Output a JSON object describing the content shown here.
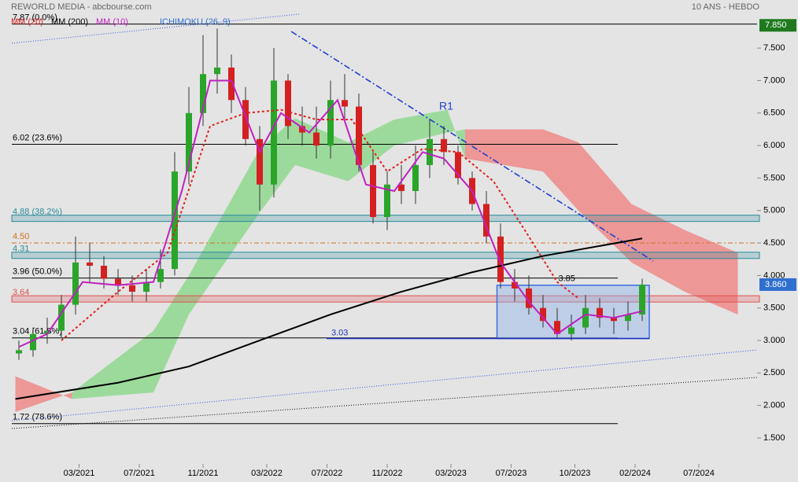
{
  "header": {
    "title": "REWORLD MEDIA - abcbourse.com",
    "period": "10 ANS - HEBDO"
  },
  "chart_data": {
    "type": "candlestick",
    "x": [
      2,
      6,
      10,
      14,
      18,
      22,
      26,
      30,
      34,
      38,
      42,
      46,
      50,
      54,
      58,
      62,
      66,
      70,
      74,
      78,
      82,
      86,
      90,
      94,
      98,
      102,
      106,
      110,
      114,
      118,
      122,
      126,
      130,
      134,
      138,
      142,
      146,
      150,
      154,
      158,
      162,
      166,
      170,
      174,
      178
    ],
    "open": [
      2.8,
      2.85,
      3.1,
      3.15,
      3.55,
      4.2,
      4.15,
      3.95,
      3.85,
      3.75,
      3.9,
      4.1,
      5.6,
      6.5,
      7.1,
      7.2,
      6.7,
      6.1,
      5.4,
      7.0,
      6.3,
      6.2,
      6.0,
      6.7,
      6.6,
      5.7,
      4.9,
      5.4,
      5.3,
      5.7,
      6.1,
      5.9,
      5.5,
      5.1,
      4.6,
      3.9,
      3.8,
      3.5,
      3.3,
      3.1,
      3.2,
      3.5,
      3.35,
      3.3,
      3.4
    ],
    "high": [
      3.0,
      3.2,
      3.35,
      3.7,
      4.6,
      4.5,
      4.3,
      4.1,
      4.0,
      4.1,
      4.4,
      5.9,
      6.9,
      7.7,
      7.8,
      7.4,
      6.9,
      6.3,
      7.5,
      7.1,
      6.6,
      6.6,
      7.0,
      7.1,
      6.8,
      5.9,
      5.6,
      5.7,
      6.0,
      6.4,
      6.3,
      6.0,
      5.6,
      5.3,
      4.8,
      4.1,
      4.0,
      3.7,
      3.5,
      3.4,
      3.7,
      3.65,
      3.5,
      3.6,
      3.95
    ],
    "low": [
      2.7,
      2.75,
      2.95,
      3.05,
      3.4,
      3.9,
      3.8,
      3.7,
      3.6,
      3.6,
      3.8,
      4.0,
      5.4,
      6.3,
      6.8,
      6.5,
      6.0,
      5.0,
      5.2,
      6.1,
      6.0,
      5.8,
      5.8,
      6.4,
      5.6,
      4.8,
      4.7,
      5.1,
      5.1,
      5.5,
      5.7,
      5.4,
      5.0,
      4.5,
      3.8,
      3.6,
      3.4,
      3.2,
      3.05,
      3.0,
      3.1,
      3.2,
      3.1,
      3.15,
      3.3
    ],
    "close": [
      2.85,
      3.1,
      3.15,
      3.55,
      4.2,
      4.15,
      3.95,
      3.85,
      3.75,
      3.9,
      4.1,
      5.6,
      6.5,
      7.1,
      7.2,
      6.7,
      6.1,
      5.4,
      7.0,
      6.3,
      6.2,
      6.0,
      6.7,
      6.6,
      5.7,
      4.9,
      5.4,
      5.3,
      5.7,
      6.1,
      5.9,
      5.5,
      5.1,
      4.6,
      3.9,
      3.8,
      3.5,
      3.3,
      3.1,
      3.2,
      3.5,
      3.35,
      3.3,
      3.4,
      3.86
    ],
    "up_color": "#2aa52a",
    "down_color": "#d42020",
    "xlim": [
      0,
      210
    ],
    "xticks": [
      {
        "value": 19,
        "label": "03/2021"
      },
      {
        "value": 36,
        "label": "07/2021"
      },
      {
        "value": 54,
        "label": "11/2021"
      },
      {
        "value": 72,
        "label": "03/2022"
      },
      {
        "value": 89,
        "label": "07/2022"
      },
      {
        "value": 106,
        "label": "11/2022"
      },
      {
        "value": 124,
        "label": "03/2023"
      },
      {
        "value": 141,
        "label": "07/2023"
      },
      {
        "value": 159,
        "label": "10/2023"
      },
      {
        "value": 176,
        "label": "02/2024"
      },
      {
        "value": 194,
        "label": "07/2024"
      }
    ],
    "ylim": [
      1.1,
      8.24
    ],
    "yticks": [
      {
        "value": 1.5,
        "label": "1.500"
      },
      {
        "value": 2,
        "label": "2.000"
      },
      {
        "value": 2.5,
        "label": "2.500"
      },
      {
        "value": 3,
        "label": "3.000"
      },
      {
        "value": 3.5,
        "label": "3.500"
      },
      {
        "value": 4,
        "label": "4.000"
      },
      {
        "value": 4.5,
        "label": "4.500"
      },
      {
        "value": 5,
        "label": "5.000"
      },
      {
        "value": 5.5,
        "label": "5.500"
      },
      {
        "value": 6,
        "label": "6.000"
      },
      {
        "value": 6.5,
        "label": "6.500"
      },
      {
        "value": 7,
        "label": "7.000"
      },
      {
        "value": 7.5,
        "label": "7.500"
      }
    ],
    "series": [
      {
        "name": "MM (20)",
        "color": "#e02020",
        "dash": true,
        "x": [
          14,
          30,
          44,
          56,
          66,
          76,
          86,
          96,
          106,
          116,
          126,
          136,
          146,
          154,
          160
        ],
        "values": [
          3.0,
          3.75,
          4.35,
          6.3,
          6.5,
          6.55,
          6.4,
          6.4,
          5.6,
          5.95,
          5.9,
          5.45,
          4.6,
          3.9,
          3.65
        ]
      },
      {
        "name": "MM (200)",
        "color": "#000000",
        "dash": false,
        "x": [
          1,
          30,
          50,
          70,
          90,
          110,
          130,
          150,
          178
        ],
        "values": [
          2.1,
          2.35,
          2.6,
          3.0,
          3.4,
          3.75,
          4.05,
          4.3,
          4.57
        ]
      },
      {
        "name": "MM (10)",
        "color": "#c020c0",
        "dash": false,
        "x": [
          2,
          10,
          20,
          30,
          40,
          48,
          56,
          62,
          70,
          76,
          84,
          92,
          100,
          108,
          116,
          122,
          130,
          138,
          146,
          154,
          162,
          170,
          178
        ],
        "values": [
          2.9,
          3.1,
          3.9,
          3.85,
          3.9,
          5.3,
          7.0,
          7.0,
          5.9,
          6.5,
          6.2,
          6.7,
          5.4,
          5.3,
          5.9,
          5.8,
          5.3,
          4.2,
          3.6,
          3.1,
          3.4,
          3.35,
          3.45
        ]
      }
    ],
    "cloud": {
      "name": "ICHIMOKU (26, 9)",
      "color": "#2f6fd0",
      "up_color": "#8fd88f",
      "down_color": "#ee8a8a",
      "x": [
        1,
        17,
        40,
        50,
        70,
        80,
        95,
        108,
        123,
        128,
        150,
        160,
        175,
        190,
        205
      ],
      "span_a": [
        1.9,
        2.2,
        3.15,
        4.0,
        5.95,
        6.42,
        6.05,
        6.4,
        6.55,
        5.8,
        5.6,
        5.0,
        4.2,
        3.75,
        3.4
      ],
      "span_b": [
        2.45,
        2.1,
        2.2,
        3.4,
        4.97,
        5.7,
        5.45,
        6.0,
        6.2,
        6.25,
        6.25,
        6.05,
        5.1,
        4.7,
        4.35
      ]
    },
    "levels": [
      {
        "label": "7.87 (0.0%)",
        "value": 7.87,
        "color": "#000000",
        "style": "solid"
      },
      {
        "label": "6.02 (23.6%)",
        "value": 6.02,
        "color": "#000000",
        "style": "solid"
      },
      {
        "label": "4.88 (38.2%)",
        "value": 4.88,
        "color": "#2a8a9a",
        "style": "band"
      },
      {
        "label": "4.50",
        "value": 4.5,
        "color": "#d07020",
        "style": "dashdot"
      },
      {
        "label": "4.31",
        "value": 4.31,
        "color": "#2a8a9a",
        "style": "band"
      },
      {
        "label": "3.96 (50.0%)",
        "value": 3.96,
        "color": "#000000",
        "style": "solid"
      },
      {
        "label": "3.64",
        "value": 3.64,
        "color": "#e05050",
        "style": "band"
      },
      {
        "label": "3.04 (61.8%)",
        "value": 3.04,
        "color": "#000000",
        "style": "solid"
      },
      {
        "label": "1.72 (78.6%)",
        "value": 1.72,
        "color": "#000000",
        "style": "solid"
      }
    ],
    "box": {
      "x": [
        137,
        180
      ],
      "top": {
        "label": "3.85",
        "value": 3.85
      },
      "bottom": {
        "label": "3.03",
        "value": 3.03
      }
    },
    "annotation": "R1",
    "price_tags": [
      {
        "label": "7.850",
        "value": 7.85,
        "color": "#1f7a1f"
      },
      {
        "label": "3.860",
        "value": 3.86,
        "color": "#2f6fd0"
      }
    ]
  }
}
